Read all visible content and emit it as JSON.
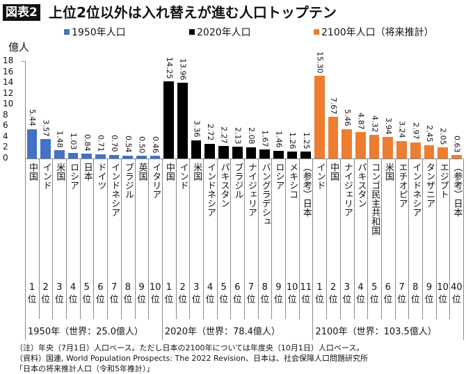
{
  "header": {
    "badge": "図表2",
    "title": "上位2位以外は入れ替えが進む人口トップテン"
  },
  "chart_data": {
    "type": "bar",
    "ylabel": "億人",
    "ylim": [
      0,
      18
    ],
    "yticks": [
      0,
      2,
      4,
      6,
      8,
      10,
      12,
      14,
      16,
      18
    ],
    "series": [
      {
        "name": "1950年人口",
        "color": "#4472c4",
        "period": "1950年（世界：25.0億人）",
        "categories": [
          "中国",
          "インド",
          "米国",
          "ロシア",
          "日本",
          "ドイツ",
          "インドネシア",
          "ブラジル",
          "英国",
          "イタリア"
        ],
        "ranks": [
          "1",
          "2",
          "3",
          "4",
          "5",
          "6",
          "7",
          "8",
          "9",
          "10"
        ],
        "values": [
          5.44,
          3.57,
          1.48,
          1.03,
          0.84,
          0.71,
          0.7,
          0.54,
          0.5,
          0.46
        ]
      },
      {
        "name": "2020年人口",
        "color": "#000000",
        "period": "2020年（世界：78.4億人）",
        "categories": [
          "中国",
          "インド",
          "米国",
          "インドネシア",
          "パキスタン",
          "ブラジル",
          "ナイジェリア",
          "バングラデシュ",
          "ロシア",
          "メキシコ",
          "（参考）日本"
        ],
        "ranks": [
          "1",
          "2",
          "3",
          "4",
          "5",
          "6",
          "7",
          "8",
          "9",
          "10",
          "11"
        ],
        "values": [
          14.25,
          13.96,
          3.36,
          2.72,
          2.27,
          2.13,
          2.08,
          1.67,
          1.46,
          1.26,
          1.25
        ]
      },
      {
        "name": "2100年人口（将来推計）",
        "color": "#ed7d31",
        "period": "2100年（世界：103.5億人）",
        "categories": [
          "インド",
          "中国",
          "ナイジェリア",
          "パキスタン",
          "コンゴ民主共和国",
          "米国",
          "エチオピア",
          "インドネシア",
          "タンザニア",
          "エジプト",
          "（参考）日本"
        ],
        "ranks": [
          "1",
          "2",
          "3",
          "4",
          "5",
          "6",
          "7",
          "8",
          "9",
          "10",
          "40"
        ],
        "values": [
          15.3,
          7.67,
          5.46,
          4.87,
          4.32,
          3.94,
          3.24,
          2.97,
          2.45,
          2.05,
          0.63
        ]
      }
    ],
    "rank_suffix": "位",
    "grid": false,
    "legend": "top"
  },
  "notes": [
    "（注）年央（7月1日）人口ベース。ただし日本の2100年については年度央（10月1日）人口ベース。",
    "（資料）国連, World Population Prospects: The 2022 Revision、日本は、社会保障人口問題研究所",
    "「日本の将来推計人口（令和5年推計）」"
  ]
}
